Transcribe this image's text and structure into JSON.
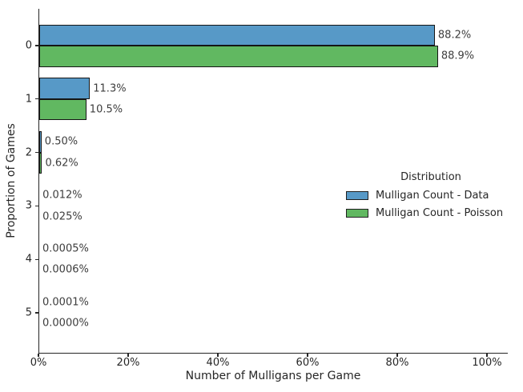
{
  "figure": {
    "background": "#ffffff"
  },
  "colors": {
    "axis": "#262626",
    "tick_label": "#262626",
    "bar_label": "#3d3d3d",
    "bar_edge": "#151515"
  },
  "chart_data": {
    "type": "bar",
    "orientation": "horizontal",
    "title": "",
    "xlabel": "Number of Mulligans per Game",
    "ylabel": "Proportion of Games",
    "categories": [
      "0",
      "1",
      "2",
      "3",
      "4",
      "5"
    ],
    "series": [
      {
        "name": "Mulligan Count - Data",
        "key": "data",
        "color": "#5799C7",
        "values_pct": [
          88.2,
          11.3,
          0.5,
          0.012,
          0.0005,
          0.0001
        ],
        "labels": [
          "88.2%",
          "11.3%",
          "0.50%",
          "0.012%",
          "0.0005%",
          "0.0001%"
        ]
      },
      {
        "name": "Mulligan Count - Poisson",
        "key": "poisson",
        "color": "#61B861",
        "values_pct": [
          88.9,
          10.5,
          0.62,
          0.025,
          0.0006,
          0.0
        ],
        "labels": [
          "88.9%",
          "10.5%",
          "0.62%",
          "0.025%",
          "0.0006%",
          "0.0000%"
        ]
      }
    ],
    "xlim": [
      0,
      100
    ],
    "x_ticks": [
      {
        "value": 0,
        "label": "0%"
      },
      {
        "value": 20,
        "label": "20%"
      },
      {
        "value": 40,
        "label": "40%"
      },
      {
        "value": 60,
        "label": "60%"
      },
      {
        "value": 80,
        "label": "80%"
      },
      {
        "value": 100,
        "label": "100%"
      }
    ],
    "grid": false,
    "legend": {
      "title": "Distribution",
      "position": "center-right"
    }
  }
}
